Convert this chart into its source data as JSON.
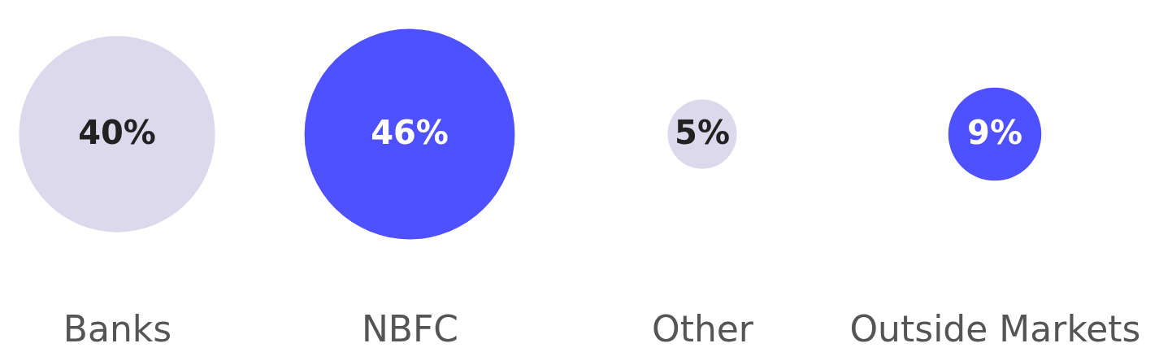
{
  "chart_data": {
    "type": "other",
    "categories": [
      "Banks",
      "NBFC",
      "Other",
      "Outside Markets"
    ],
    "values": [
      40,
      46,
      5,
      9
    ],
    "colors": [
      "#dcd9ec",
      "#4f50ff",
      "#dcd9ec",
      "#4f50ff"
    ],
    "value_labels": [
      "40%",
      "46%",
      "5%",
      "9%"
    ]
  }
}
